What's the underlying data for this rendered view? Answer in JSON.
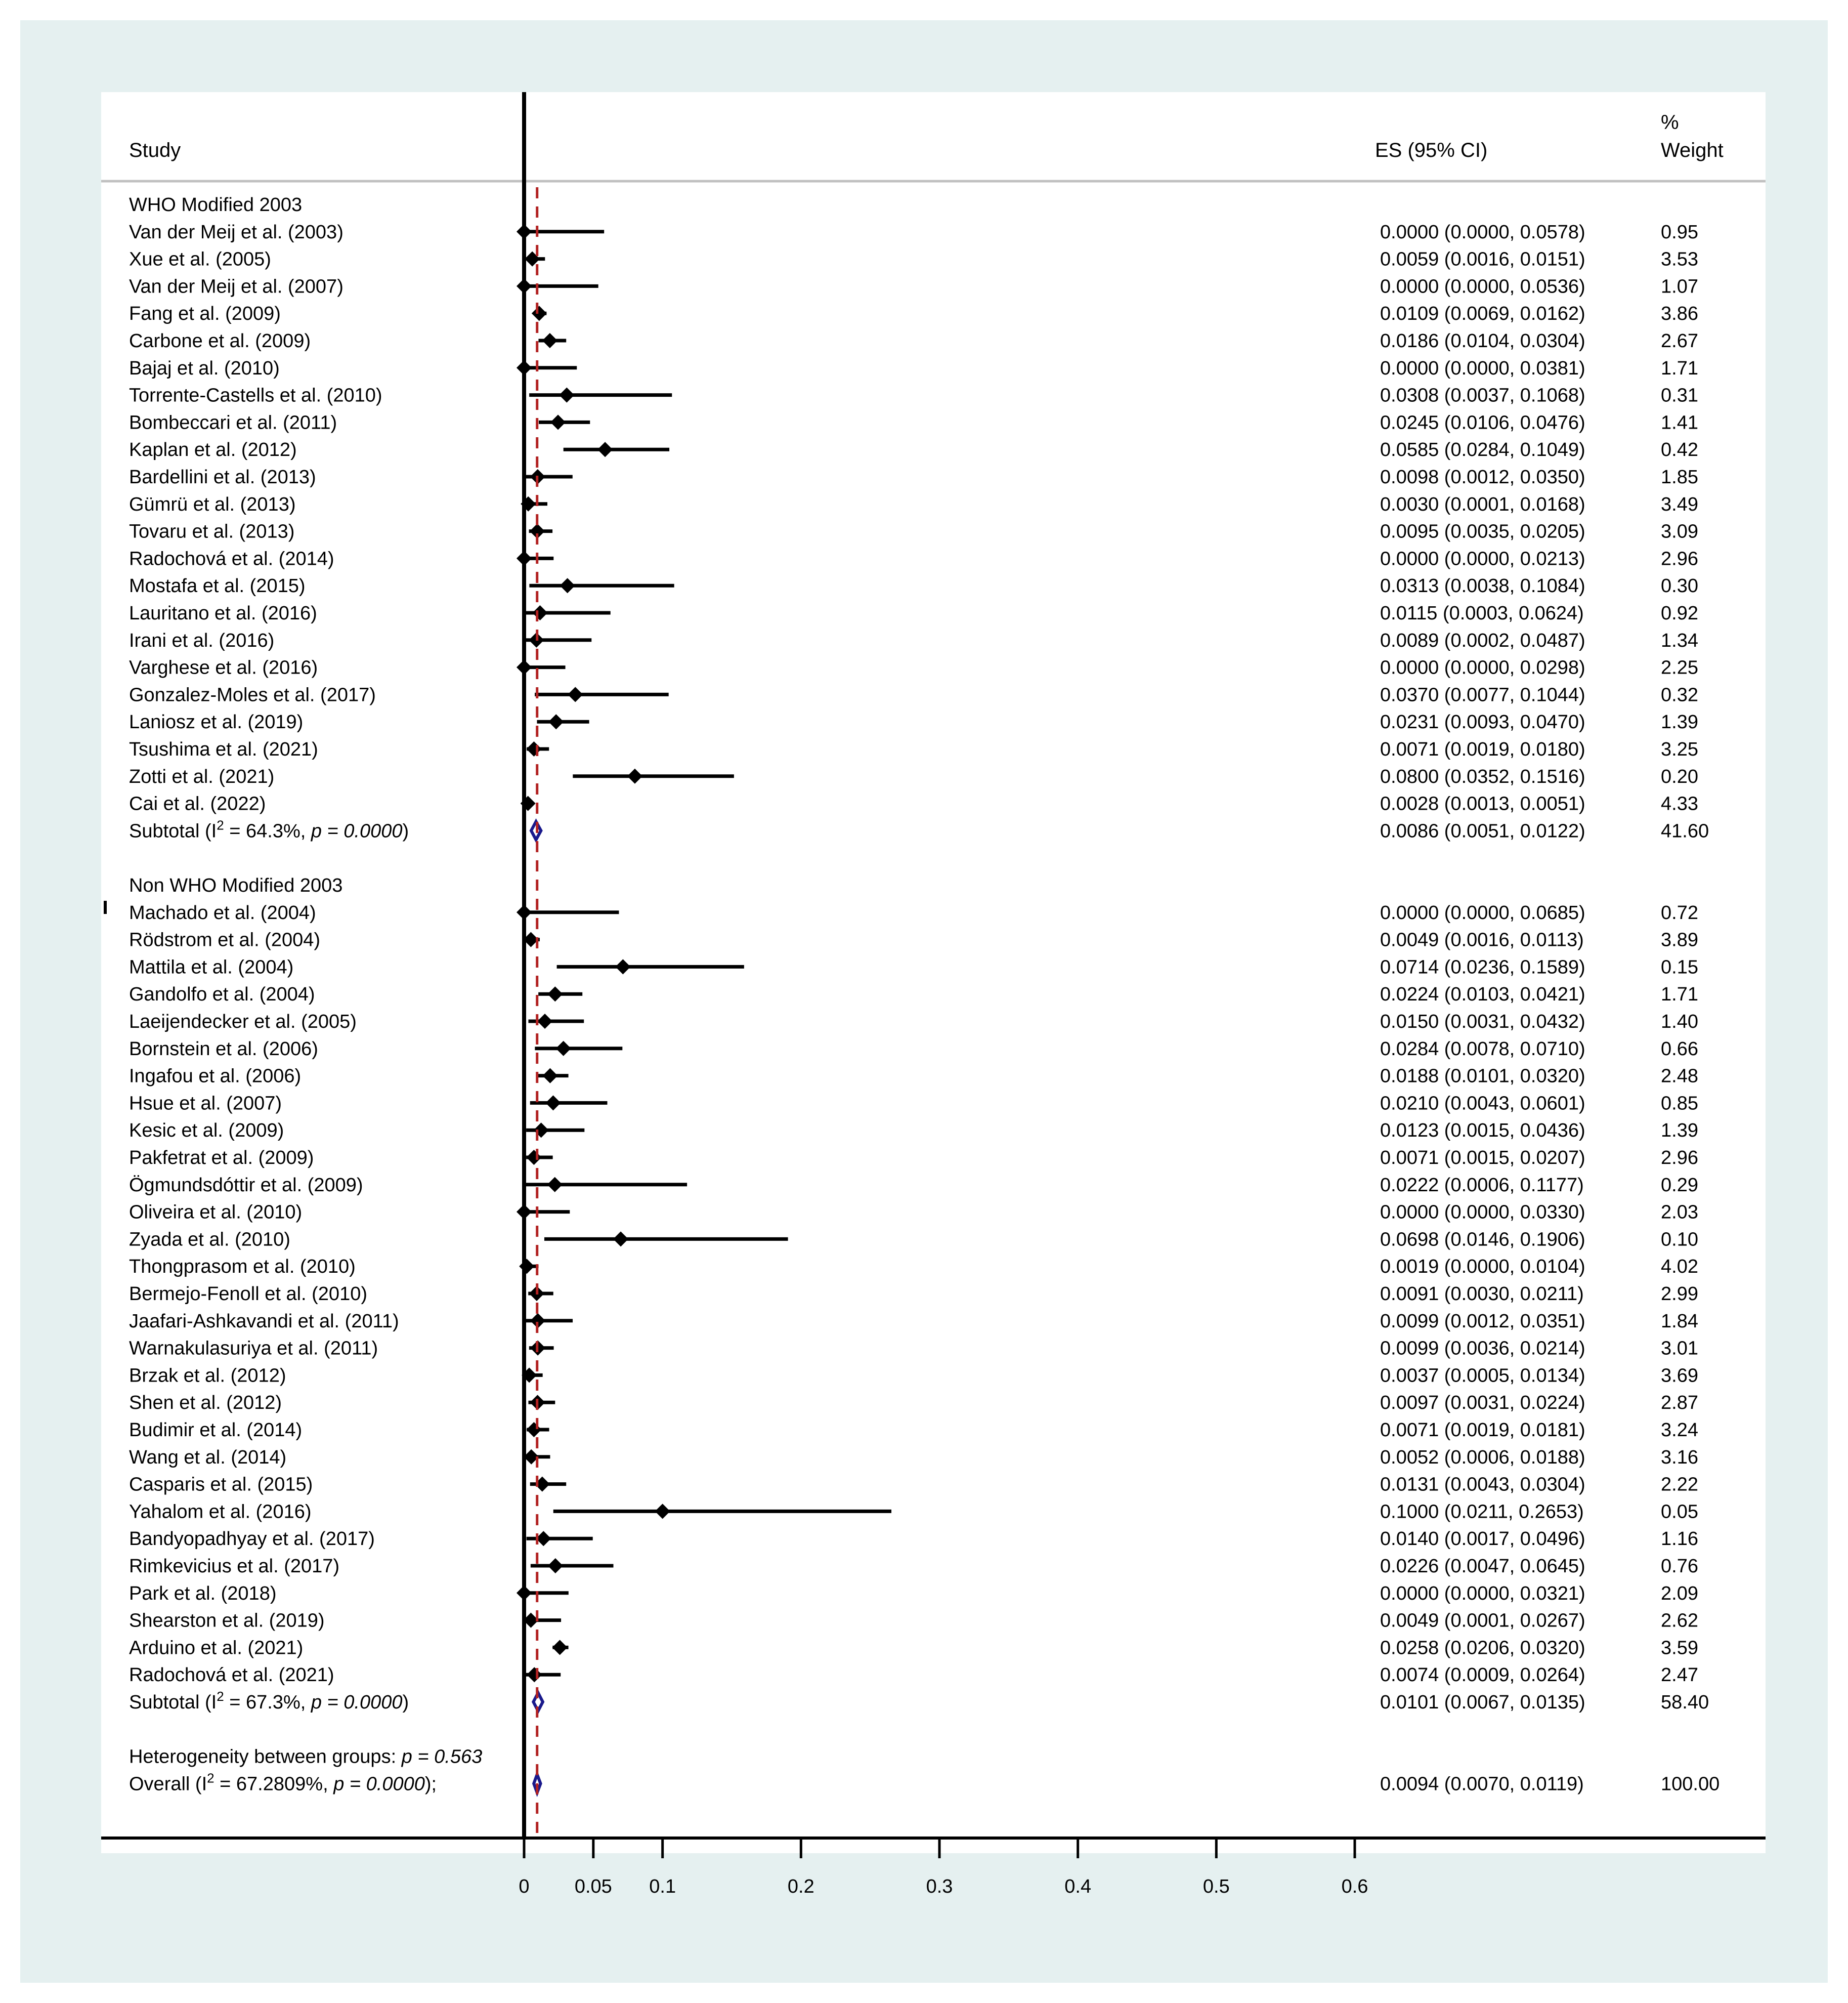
{
  "chart_data": {
    "type": "forest",
    "headers": {
      "study": "Study",
      "es": "ES (95% CI)",
      "weight_line1": "%",
      "weight_line2": "Weight"
    },
    "x_ticks": [
      "0",
      "0.05",
      "0.1",
      "0.2",
      "0.3",
      "0.4",
      "0.5",
      "0.6"
    ],
    "x_tick_values": [
      0,
      0.05,
      0.1,
      0.2,
      0.3,
      0.4,
      0.5,
      0.6
    ],
    "xlim": [
      0,
      0.6
    ],
    "overall_es": 0.0094,
    "colors": {
      "diamond": "#1a1a8c",
      "reference_line": "#b22222",
      "frame_bg": "#e5f0f0"
    },
    "groups": [
      {
        "label": "WHO Modified 2003",
        "studies": [
          {
            "name": "Van der Meij et al. (2003)",
            "es": 0.0,
            "lo": 0.0,
            "hi": 0.0578,
            "ci_text": "0.0000 (0.0000, 0.0578)",
            "weight": "0.95"
          },
          {
            "name": "Xue et al. (2005)",
            "es": 0.0059,
            "lo": 0.0016,
            "hi": 0.0151,
            "ci_text": "0.0059 (0.0016, 0.0151)",
            "weight": "3.53"
          },
          {
            "name": "Van der Meij et al. (2007)",
            "es": 0.0,
            "lo": 0.0,
            "hi": 0.0536,
            "ci_text": "0.0000 (0.0000, 0.0536)",
            "weight": "1.07"
          },
          {
            "name": "Fang et al. (2009)",
            "es": 0.0109,
            "lo": 0.0069,
            "hi": 0.0162,
            "ci_text": "0.0109 (0.0069, 0.0162)",
            "weight": "3.86"
          },
          {
            "name": "Carbone et al. (2009)",
            "es": 0.0186,
            "lo": 0.0104,
            "hi": 0.0304,
            "ci_text": "0.0186 (0.0104, 0.0304)",
            "weight": "2.67"
          },
          {
            "name": "Bajaj et al. (2010)",
            "es": 0.0,
            "lo": 0.0,
            "hi": 0.0381,
            "ci_text": "0.0000 (0.0000, 0.0381)",
            "weight": "1.71"
          },
          {
            "name": "Torrente-Castells et al. (2010)",
            "es": 0.0308,
            "lo": 0.0037,
            "hi": 0.1068,
            "ci_text": "0.0308 (0.0037, 0.1068)",
            "weight": "0.31"
          },
          {
            "name": "Bombeccari et al. (2011)",
            "es": 0.0245,
            "lo": 0.0106,
            "hi": 0.0476,
            "ci_text": "0.0245 (0.0106, 0.0476)",
            "weight": "1.41"
          },
          {
            "name": "Kaplan et al. (2012)",
            "es": 0.0585,
            "lo": 0.0284,
            "hi": 0.1049,
            "ci_text": "0.0585 (0.0284, 0.1049)",
            "weight": "0.42"
          },
          {
            "name": "Bardellini et al. (2013)",
            "es": 0.0098,
            "lo": 0.0012,
            "hi": 0.035,
            "ci_text": "0.0098 (0.0012, 0.0350)",
            "weight": "1.85"
          },
          {
            "name": "Gümrü et al. (2013)",
            "es": 0.003,
            "lo": 0.0001,
            "hi": 0.0168,
            "ci_text": "0.0030 (0.0001, 0.0168)",
            "weight": "3.49"
          },
          {
            "name": "Tovaru et al. (2013)",
            "es": 0.0095,
            "lo": 0.0035,
            "hi": 0.0205,
            "ci_text": "0.0095 (0.0035, 0.0205)",
            "weight": "3.09"
          },
          {
            "name": "Radochová et al. (2014)",
            "es": 0.0,
            "lo": 0.0,
            "hi": 0.0213,
            "ci_text": "0.0000 (0.0000, 0.0213)",
            "weight": "2.96"
          },
          {
            "name": "Mostafa et al. (2015)",
            "es": 0.0313,
            "lo": 0.0038,
            "hi": 0.1084,
            "ci_text": "0.0313 (0.0038, 0.1084)",
            "weight": "0.30"
          },
          {
            "name": "Lauritano et al. (2016)",
            "es": 0.0115,
            "lo": 0.0003,
            "hi": 0.0624,
            "ci_text": "0.0115 (0.0003, 0.0624)",
            "weight": "0.92"
          },
          {
            "name": "Irani et al. (2016)",
            "es": 0.0089,
            "lo": 0.0002,
            "hi": 0.0487,
            "ci_text": "0.0089 (0.0002, 0.0487)",
            "weight": "1.34"
          },
          {
            "name": "Varghese et al. (2016)",
            "es": 0.0,
            "lo": 0.0,
            "hi": 0.0298,
            "ci_text": "0.0000 (0.0000, 0.0298)",
            "weight": "2.25"
          },
          {
            "name": "Gonzalez-Moles et al. (2017)",
            "es": 0.037,
            "lo": 0.0077,
            "hi": 0.1044,
            "ci_text": "0.0370 (0.0077, 0.1044)",
            "weight": "0.32"
          },
          {
            "name": "Laniosz et al. (2019)",
            "es": 0.0231,
            "lo": 0.0093,
            "hi": 0.047,
            "ci_text": "0.0231 (0.0093, 0.0470)",
            "weight": "1.39"
          },
          {
            "name": "Tsushima et al. (2021)",
            "es": 0.0071,
            "lo": 0.0019,
            "hi": 0.018,
            "ci_text": "0.0071 (0.0019, 0.0180)",
            "weight": "3.25"
          },
          {
            "name": "Zotti et al. (2021)",
            "es": 0.08,
            "lo": 0.0352,
            "hi": 0.1516,
            "ci_text": "0.0800 (0.0352, 0.1516)",
            "weight": "0.20"
          },
          {
            "name": "Cai et al. (2022)",
            "es": 0.0028,
            "lo": 0.0013,
            "hi": 0.0051,
            "ci_text": "0.0028 (0.0013, 0.0051)",
            "weight": "4.33"
          }
        ],
        "subtotal": {
          "label": "Subtotal",
          "i2": "64.3%",
          "p": "0.0000",
          "es": 0.0086,
          "lo": 0.0051,
          "hi": 0.0122,
          "ci_text": "0.0086 (0.0051, 0.0122)",
          "weight": "41.60"
        }
      },
      {
        "label": "Non WHO Modified 2003",
        "studies": [
          {
            "name": "Machado et al. (2004)",
            "es": 0.0,
            "lo": 0.0,
            "hi": 0.0685,
            "ci_text": "0.0000 (0.0000, 0.0685)",
            "weight": "0.72"
          },
          {
            "name": "Rödstrom et al. (2004)",
            "es": 0.0049,
            "lo": 0.0016,
            "hi": 0.0113,
            "ci_text": "0.0049 (0.0016, 0.0113)",
            "weight": "3.89"
          },
          {
            "name": "Mattila et al. (2004)",
            "es": 0.0714,
            "lo": 0.0236,
            "hi": 0.1589,
            "ci_text": "0.0714 (0.0236, 0.1589)",
            "weight": "0.15"
          },
          {
            "name": "Gandolfo et al. (2004)",
            "es": 0.0224,
            "lo": 0.0103,
            "hi": 0.0421,
            "ci_text": "0.0224 (0.0103, 0.0421)",
            "weight": "1.71"
          },
          {
            "name": "Laeijendecker et al. (2005)",
            "es": 0.015,
            "lo": 0.0031,
            "hi": 0.0432,
            "ci_text": "0.0150 (0.0031, 0.0432)",
            "weight": "1.40"
          },
          {
            "name": "Bornstein et al. (2006)",
            "es": 0.0284,
            "lo": 0.0078,
            "hi": 0.071,
            "ci_text": "0.0284 (0.0078, 0.0710)",
            "weight": "0.66"
          },
          {
            "name": "Ingafou et al. (2006)",
            "es": 0.0188,
            "lo": 0.0101,
            "hi": 0.032,
            "ci_text": "0.0188 (0.0101, 0.0320)",
            "weight": "2.48"
          },
          {
            "name": "Hsue et al. (2007)",
            "es": 0.021,
            "lo": 0.0043,
            "hi": 0.0601,
            "ci_text": "0.0210 (0.0043, 0.0601)",
            "weight": "0.85"
          },
          {
            "name": "Kesic et al. (2009)",
            "es": 0.0123,
            "lo": 0.0015,
            "hi": 0.0436,
            "ci_text": "0.0123 (0.0015, 0.0436)",
            "weight": "1.39"
          },
          {
            "name": "Pakfetrat et al. (2009)",
            "es": 0.0071,
            "lo": 0.0015,
            "hi": 0.0207,
            "ci_text": "0.0071 (0.0015, 0.0207)",
            "weight": "2.96"
          },
          {
            "name": "Ögmundsdóttir et al. (2009)",
            "es": 0.0222,
            "lo": 0.0006,
            "hi": 0.1177,
            "ci_text": "0.0222 (0.0006, 0.1177)",
            "weight": "0.29"
          },
          {
            "name": "Oliveira et al. (2010)",
            "es": 0.0,
            "lo": 0.0,
            "hi": 0.033,
            "ci_text": "0.0000 (0.0000, 0.0330)",
            "weight": "2.03"
          },
          {
            "name": "Zyada et al. (2010)",
            "es": 0.0698,
            "lo": 0.0146,
            "hi": 0.1906,
            "ci_text": "0.0698 (0.0146, 0.1906)",
            "weight": "0.10"
          },
          {
            "name": "Thongprasom et al. (2010)",
            "es": 0.0019,
            "lo": 0.0,
            "hi": 0.0104,
            "ci_text": "0.0019 (0.0000, 0.0104)",
            "weight": "4.02"
          },
          {
            "name": "Bermejo-Fenoll et al. (2010)",
            "es": 0.0091,
            "lo": 0.003,
            "hi": 0.0211,
            "ci_text": "0.0091 (0.0030, 0.0211)",
            "weight": "2.99"
          },
          {
            "name": "Jaafari-Ashkavandi et al. (2011)",
            "es": 0.0099,
            "lo": 0.0012,
            "hi": 0.0351,
            "ci_text": "0.0099 (0.0012, 0.0351)",
            "weight": "1.84"
          },
          {
            "name": "Warnakulasuriya et al. (2011)",
            "es": 0.0099,
            "lo": 0.0036,
            "hi": 0.0214,
            "ci_text": "0.0099 (0.0036, 0.0214)",
            "weight": "3.01"
          },
          {
            "name": "Brzak et al. (2012)",
            "es": 0.0037,
            "lo": 0.0005,
            "hi": 0.0134,
            "ci_text": "0.0037 (0.0005, 0.0134)",
            "weight": "3.69"
          },
          {
            "name": "Shen et al. (2012)",
            "es": 0.0097,
            "lo": 0.0031,
            "hi": 0.0224,
            "ci_text": "0.0097 (0.0031, 0.0224)",
            "weight": "2.87"
          },
          {
            "name": "Budimir et al. (2014)",
            "es": 0.0071,
            "lo": 0.0019,
            "hi": 0.0181,
            "ci_text": "0.0071 (0.0019, 0.0181)",
            "weight": "3.24"
          },
          {
            "name": "Wang et al. (2014)",
            "es": 0.0052,
            "lo": 0.0006,
            "hi": 0.0188,
            "ci_text": "0.0052 (0.0006, 0.0188)",
            "weight": "3.16"
          },
          {
            "name": "Casparis et al. (2015)",
            "es": 0.0131,
            "lo": 0.0043,
            "hi": 0.0304,
            "ci_text": "0.0131 (0.0043, 0.0304)",
            "weight": "2.22"
          },
          {
            "name": "Yahalom et al. (2016)",
            "es": 0.1,
            "lo": 0.0211,
            "hi": 0.2653,
            "ci_text": "0.1000 (0.0211, 0.2653)",
            "weight": "0.05"
          },
          {
            "name": "Bandyopadhyay et al. (2017)",
            "es": 0.014,
            "lo": 0.0017,
            "hi": 0.0496,
            "ci_text": "0.0140 (0.0017, 0.0496)",
            "weight": "1.16"
          },
          {
            "name": "Rimkevicius et al. (2017)",
            "es": 0.0226,
            "lo": 0.0047,
            "hi": 0.0645,
            "ci_text": "0.0226 (0.0047, 0.0645)",
            "weight": "0.76"
          },
          {
            "name": "Park et al. (2018)",
            "es": 0.0,
            "lo": 0.0,
            "hi": 0.0321,
            "ci_text": "0.0000 (0.0000, 0.0321)",
            "weight": "2.09"
          },
          {
            "name": "Shearston et al. (2019)",
            "es": 0.0049,
            "lo": 0.0001,
            "hi": 0.0267,
            "ci_text": "0.0049 (0.0001, 0.0267)",
            "weight": "2.62"
          },
          {
            "name": "Arduino et al. (2021)",
            "es": 0.0258,
            "lo": 0.0206,
            "hi": 0.032,
            "ci_text": "0.0258 (0.0206, 0.0320)",
            "weight": "3.59"
          },
          {
            "name": "Radochová et al. (2021)",
            "es": 0.0074,
            "lo": 0.0009,
            "hi": 0.0264,
            "ci_text": "0.0074 (0.0009, 0.0264)",
            "weight": "2.47"
          }
        ],
        "subtotal": {
          "label": "Subtotal",
          "i2": "67.3%",
          "p": "0.0000",
          "es": 0.0101,
          "lo": 0.0067,
          "hi": 0.0135,
          "ci_text": "0.0101 (0.0067, 0.0135)",
          "weight": "58.40"
        }
      }
    ],
    "heterogeneity": {
      "label": "Heterogeneity between groups:",
      "p": "0.563"
    },
    "overall": {
      "label": "Overall",
      "i2": "67.2809%",
      "p": "0.0000",
      "es": 0.0094,
      "lo": 0.007,
      "hi": 0.0119,
      "ci_text": "0.0094 (0.0070, 0.0119)",
      "weight": "100.00"
    }
  }
}
